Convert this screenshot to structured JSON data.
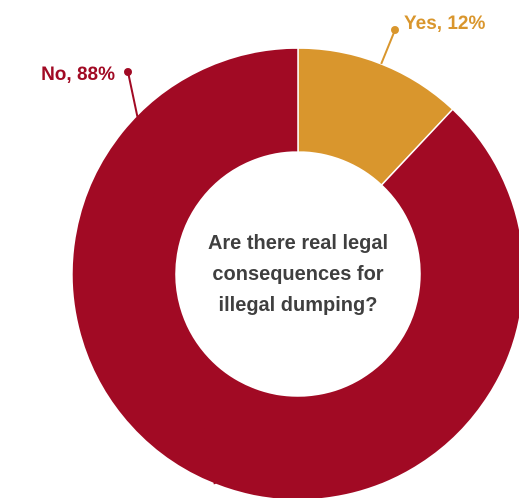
{
  "chart_data": {
    "type": "pie",
    "variant": "donut",
    "title": "Are there real legal consequences for illegal dumping?",
    "title_lines": [
      "Are there real legal",
      "consequences for",
      "illegal dumping?"
    ],
    "series": [
      {
        "name": "Yes",
        "value": 12,
        "label": "Yes, 12%",
        "color": "#D9962D"
      },
      {
        "name": "No",
        "value": 88,
        "label": "No, 88%",
        "color": "#A10A24"
      }
    ],
    "legend": "none"
  }
}
